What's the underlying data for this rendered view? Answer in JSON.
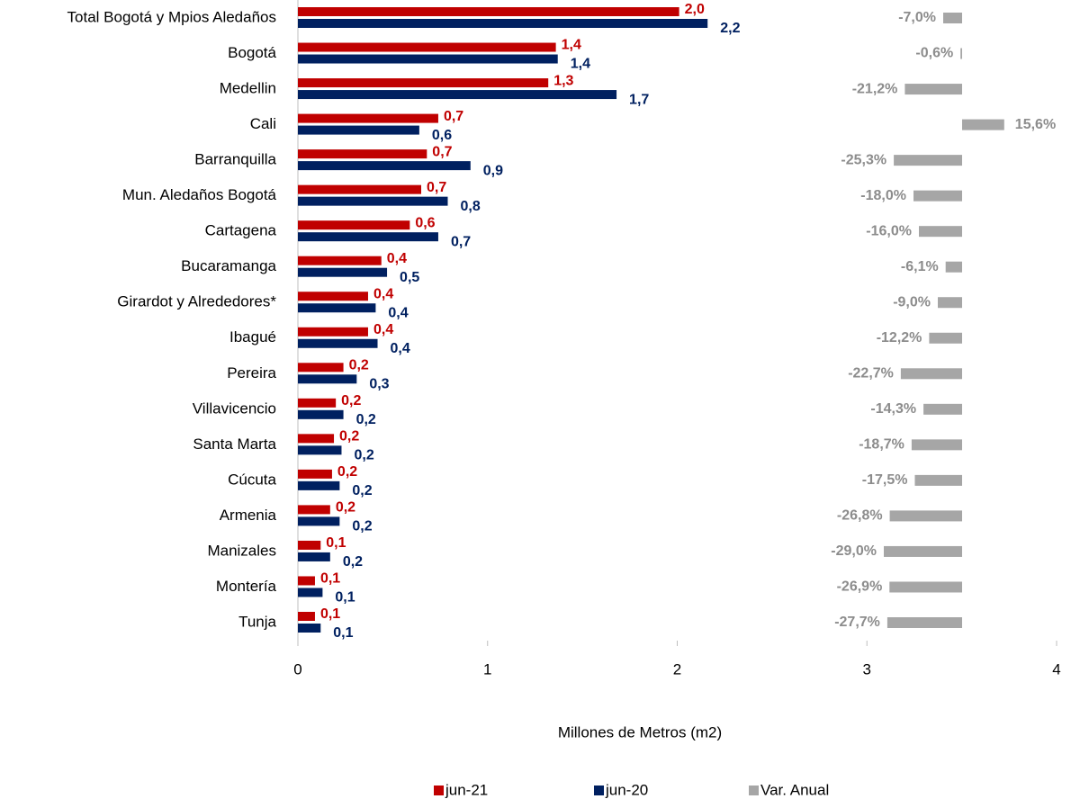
{
  "chart_data": {
    "type": "bar",
    "orientation": "horizontal",
    "xlabel": "Millones de Metros (m2)",
    "categories": [
      "Total Bogotá y Mpios Aledaños",
      "Bogotá",
      "Medellin",
      "Cali",
      "Barranquilla",
      "Mun.  Aledaños Bogotá",
      "Cartagena",
      "Bucaramanga",
      "Girardot y Alrededores*",
      "Ibagué",
      "Pereira",
      "Villavicencio",
      "Santa Marta",
      "Cúcuta",
      "Armenia",
      "Manizales",
      "Montería",
      "Tunja"
    ],
    "series": [
      {
        "name": "jun-21",
        "color": "#c00000",
        "values": [
          2.01,
          1.36,
          1.32,
          0.74,
          0.68,
          0.65,
          0.59,
          0.44,
          0.37,
          0.37,
          0.24,
          0.2,
          0.19,
          0.18,
          0.17,
          0.12,
          0.09,
          0.09
        ],
        "value_labels": [
          "2,0",
          "1,4",
          "1,3",
          "0,7",
          "0,7",
          "0,7",
          "0,6",
          "0,4",
          "0,4",
          "0,4",
          "0,2",
          "0,2",
          "0,2",
          "0,2",
          "0,2",
          "0,1",
          "0,1",
          "0,1"
        ]
      },
      {
        "name": "jun-20",
        "color": "#002060",
        "values": [
          2.16,
          1.37,
          1.68,
          0.64,
          0.91,
          0.79,
          0.74,
          0.47,
          0.41,
          0.42,
          0.31,
          0.24,
          0.23,
          0.22,
          0.22,
          0.17,
          0.13,
          0.12
        ],
        "value_labels": [
          "2,2",
          "1,4",
          "1,7",
          "0,6",
          "0,9",
          "0,8",
          "0,7",
          "0,5",
          "0,4",
          "0,4",
          "0,3",
          "0,2",
          "0,2",
          "0,2",
          "0,2",
          "0,2",
          "0,1",
          "0,1"
        ]
      },
      {
        "name": "Var. Anual",
        "color": "#a6a6a6",
        "axis": "x2",
        "label_color": "#8c8c8c",
        "values": [
          -7.0,
          -0.6,
          -21.2,
          15.6,
          -25.3,
          -18.0,
          -16.0,
          -6.1,
          -9.0,
          -12.2,
          -22.7,
          -14.3,
          -18.7,
          -17.5,
          -26.8,
          -29.0,
          -26.9,
          -27.7
        ],
        "value_labels": [
          "-7,0%",
          "-0,6%",
          "-21,2%",
          "15,6%",
          "-25,3%",
          "-18,0%",
          "-16,0%",
          "-6,1%",
          "-9,0%",
          "-12,2%",
          "-22,7%",
          "-14,3%",
          "-18,7%",
          "-17,5%",
          "-26,8%",
          "-29,0%",
          "-26,9%",
          "-27,7%"
        ]
      }
    ],
    "xlim": [
      0,
      4
    ],
    "xticks": [
      0,
      1,
      2,
      3,
      4
    ],
    "x2lim": [
      -246,
      35
    ],
    "legend": "bottom"
  }
}
